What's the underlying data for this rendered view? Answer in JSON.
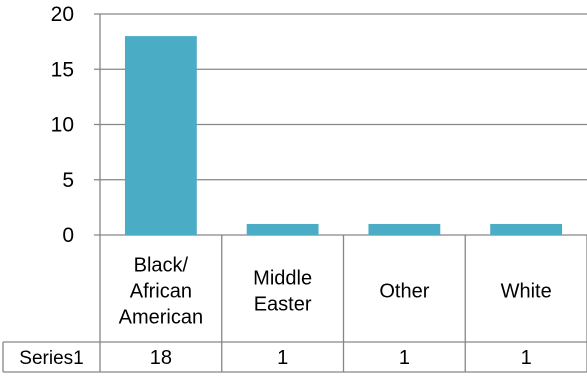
{
  "chart_data": {
    "type": "bar",
    "categories": [
      [
        "Black/",
        "African",
        "American"
      ],
      [
        "Middle",
        "Easter"
      ],
      [
        "Other"
      ],
      [
        "White"
      ]
    ],
    "series": [
      {
        "name": "Series1",
        "values": [
          18,
          1,
          1,
          1
        ],
        "data_labels": [
          "18",
          "1",
          "1",
          "1"
        ],
        "color": "#4BACC6"
      }
    ],
    "ylim": [
      0,
      20
    ],
    "yticks": [
      "0",
      "5",
      "10",
      "15",
      "20"
    ],
    "grid": true,
    "legend": "data-table",
    "title": "",
    "xlabel": "",
    "ylabel": ""
  }
}
